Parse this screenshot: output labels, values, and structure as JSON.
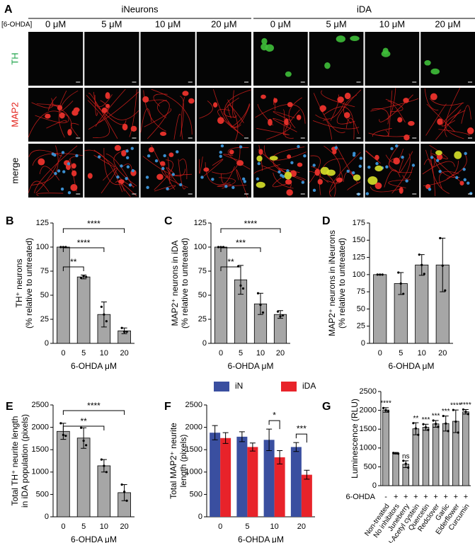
{
  "panel_a": {
    "label": "A",
    "treatment": "[6-OHDA]",
    "groups": [
      {
        "name": "iNeurons",
        "concentrations": [
          "0 μM",
          "5 μM",
          "10 μM",
          "20 μM"
        ]
      },
      {
        "name": "iDA",
        "concentrations": [
          "0 μM",
          "5 μM",
          "10 μM",
          "20 μM"
        ]
      }
    ],
    "rows": [
      {
        "name": "TH",
        "color": "#1fa34a"
      },
      {
        "name": "MAP2",
        "color": "#e32119"
      },
      {
        "name": "merge",
        "color": "#000000"
      }
    ]
  },
  "chart_data": [
    {
      "type": "bar",
      "label": "B",
      "ylabel": [
        "TH⁺ neurons",
        "(% relative to untreated)"
      ],
      "xlabel": "6-OHDA μM",
      "categories": [
        "0",
        "5",
        "10",
        "20"
      ],
      "values": [
        100,
        69,
        30,
        13
      ],
      "errors": [
        0,
        2,
        13,
        3
      ],
      "points": [
        [
          100,
          100,
          100
        ],
        [
          68,
          70,
          69
        ],
        [
          38,
          30,
          23
        ],
        [
          16,
          12,
          12
        ]
      ],
      "color": "#a6a6a6",
      "ylim": [
        0,
        125
      ],
      "yticks": [
        0,
        25,
        50,
        75,
        100,
        125
      ],
      "comparisons": [
        {
          "pair": [
            "0",
            "5"
          ],
          "text": "**"
        },
        {
          "pair": [
            "0",
            "10"
          ],
          "text": "****"
        },
        {
          "pair": [
            "0",
            "20"
          ],
          "text": "****"
        }
      ]
    },
    {
      "type": "bar",
      "label": "C",
      "ylabel": [
        "MAP2⁺ neurons in iDA",
        "(% relative to untreated)"
      ],
      "xlabel": "6-OHDA μM",
      "categories": [
        "0",
        "5",
        "10",
        "20"
      ],
      "values": [
        100,
        66,
        41,
        30
      ],
      "errors": [
        0,
        15,
        11,
        4
      ],
      "points": [
        [
          100,
          100,
          100
        ],
        [
          80,
          60,
          57
        ],
        [
          52,
          40,
          32
        ],
        [
          33,
          28,
          29
        ]
      ],
      "color": "#a6a6a6",
      "ylim": [
        0,
        125
      ],
      "yticks": [
        0,
        25,
        50,
        75,
        100,
        125
      ],
      "comparisons": [
        {
          "pair": [
            "0",
            "5"
          ],
          "text": "**"
        },
        {
          "pair": [
            "0",
            "10"
          ],
          "text": "***"
        },
        {
          "pair": [
            "0",
            "20"
          ],
          "text": "****"
        }
      ]
    },
    {
      "type": "bar",
      "label": "D",
      "ylabel": [
        "MAP2⁺ neurons in iNeurons",
        "(% relative to untreated)"
      ],
      "xlabel": "6-OHDA μM",
      "categories": [
        "0",
        "5",
        "10",
        "20"
      ],
      "values": [
        100,
        87,
        114,
        114
      ],
      "errors": [
        0,
        16,
        15,
        39
      ],
      "points": [
        [
          100,
          100,
          100
        ],
        [
          103,
          87,
          72
        ],
        [
          129,
          114,
          101
        ],
        [
          153,
          113,
          77
        ]
      ],
      "color": "#a6a6a6",
      "ylim": [
        0,
        175
      ],
      "yticks": [
        0,
        25,
        50,
        75,
        100,
        125,
        150,
        175
      ]
    },
    {
      "type": "bar",
      "label": "E",
      "ylabel": [
        "Total TH⁺ neurite length",
        "in iDA population (pixels)"
      ],
      "xlabel": "6-OHDA μM",
      "categories": [
        "0",
        "5",
        "10",
        "20"
      ],
      "values": [
        1910,
        1760,
        1140,
        540
      ],
      "errors": [
        180,
        230,
        140,
        180
      ],
      "points": [
        [
          2090,
          1830,
          1810
        ],
        [
          1990,
          1700,
          1600
        ],
        [
          1280,
          1140,
          1000
        ],
        [
          720,
          560,
          360
        ]
      ],
      "color": "#a6a6a6",
      "ylim": [
        0,
        2500
      ],
      "yticks": [
        0,
        500,
        1000,
        1500,
        2000,
        2500
      ],
      "comparisons": [
        {
          "pair": [
            "0",
            "10"
          ],
          "text": "**"
        },
        {
          "pair": [
            "0",
            "20"
          ],
          "text": "****"
        }
      ]
    },
    {
      "type": "grouped_bar",
      "label": "F",
      "ylabel": [
        "Total MAP2⁺ neurite",
        "length (pixels)"
      ],
      "xlabel": "6-OHDA μM",
      "categories": [
        "0",
        "5",
        "10",
        "20"
      ],
      "legend": "top",
      "series": [
        {
          "name": "iN",
          "color": "#3a4fa0",
          "values": [
            1880,
            1790,
            1720,
            1560
          ],
          "errors": [
            160,
            110,
            240,
            100
          ]
        },
        {
          "name": "iDA",
          "color": "#e8232a",
          "values": [
            1760,
            1560,
            1330,
            940
          ],
          "errors": [
            120,
            90,
            150,
            100
          ]
        }
      ],
      "ylim": [
        0,
        2500
      ],
      "yticks": [
        0,
        500,
        1000,
        1500,
        2000,
        2500
      ],
      "comparisons": [
        {
          "category": "10",
          "text": "*"
        },
        {
          "category": "20",
          "text": "***"
        }
      ]
    },
    {
      "type": "bar",
      "label": "G",
      "ylabel": [
        "Luminescence (RLU)"
      ],
      "categories": [
        "Non-treated",
        "No inhibitors",
        "Juneberry",
        "N-Acetyl cystein",
        "Quercetin",
        "Redclover",
        "Garlic",
        "Elderflower",
        "Curcumin"
      ],
      "values": [
        2010,
        860,
        570,
        1510,
        1550,
        1640,
        1650,
        1710,
        1960
      ],
      "errors": [
        60,
        20,
        90,
        160,
        80,
        90,
        200,
        300,
        60
      ],
      "points": [
        [
          2060,
          2000,
          1970
        ],
        [
          870,
          860,
          850
        ],
        [
          660,
          580,
          480
        ],
        [
          1660,
          1520,
          1350
        ],
        [
          1630,
          1550,
          1480
        ],
        [
          1730,
          1640,
          1560
        ],
        [
          1850,
          1650,
          1450
        ],
        [
          2010,
          1700,
          1410
        ],
        [
          2020,
          1960,
          1900
        ]
      ],
      "color": "#a6a6a6",
      "treatment": "6-OHDA",
      "treatment_values": [
        "-",
        "+",
        "+",
        "+",
        "+",
        "+",
        "+",
        "+",
        "+"
      ],
      "significance": [
        "****",
        null,
        "ns",
        "**",
        "***",
        "***",
        "***",
        "****",
        "****"
      ],
      "ylim": [
        0,
        2500
      ],
      "yticks": [
        0,
        500,
        1000,
        1500,
        2000,
        2500
      ]
    }
  ]
}
